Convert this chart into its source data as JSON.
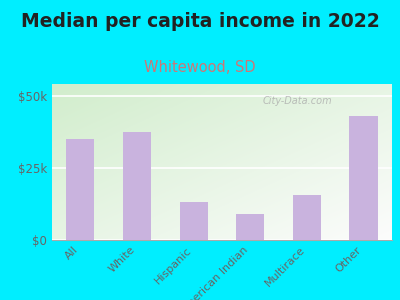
{
  "title": "Median per capita income in 2022",
  "subtitle": "Whitewood, SD",
  "categories": [
    "All",
    "White",
    "Hispanic",
    "American Indian",
    "Multirace",
    "Other"
  ],
  "values": [
    35000,
    37500,
    13000,
    9000,
    15500,
    43000
  ],
  "bar_color": "#c9b3de",
  "background_outer": "#00eeff",
  "yticks": [
    0,
    25000,
    50000
  ],
  "ytick_labels": [
    "$0",
    "$25k",
    "$50k"
  ],
  "ylim": [
    0,
    54000
  ],
  "title_fontsize": 13.5,
  "subtitle_fontsize": 10.5,
  "subtitle_color": "#cc7777",
  "watermark": "City-Data.com",
  "axis_label_color": "#666666",
  "grad_colors": [
    "#c8e8b0",
    "#f0f8e0",
    "#f8ffe8"
  ],
  "title_color": "#222222"
}
